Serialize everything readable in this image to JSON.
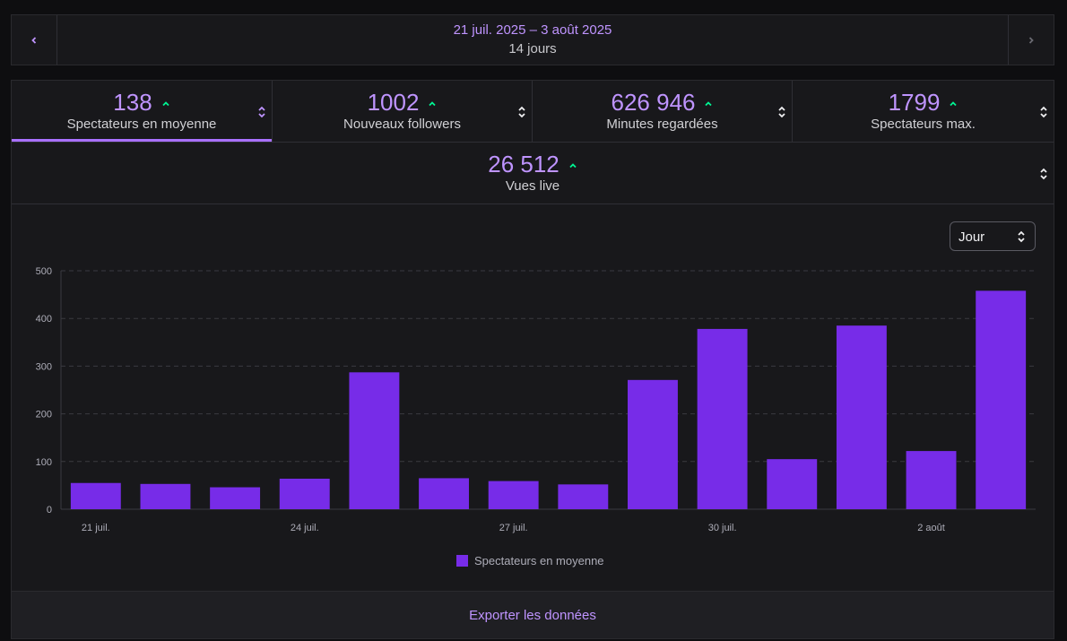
{
  "date_nav": {
    "range": "21 juil. 2025 – 3 août 2025",
    "days": "14 jours",
    "prev_icon": "chevron-left-icon",
    "next_icon": "chevron-right-icon"
  },
  "stats": [
    {
      "value": "138",
      "label": "Spectateurs en moyenne",
      "trend": "up",
      "active": true
    },
    {
      "value": "1002",
      "label": "Nouveaux followers",
      "trend": "up",
      "active": false
    },
    {
      "value": "626 946",
      "label": "Minutes regardées",
      "trend": "up",
      "active": false
    },
    {
      "value": "1799",
      "label": "Spectateurs max.",
      "trend": "up",
      "active": false
    },
    {
      "value": "26 512",
      "label": "Vues live",
      "trend": "up",
      "active": false
    }
  ],
  "granularity_select": {
    "value": "Jour"
  },
  "chart_data": {
    "type": "bar",
    "categories": [
      "21 juil.",
      "22 juil.",
      "23 juil.",
      "24 juil.",
      "25 juil.",
      "26 juil.",
      "27 juil.",
      "28 juil.",
      "29 juil.",
      "30 juil.",
      "31 juil.",
      "1 août",
      "2 août",
      "3 août"
    ],
    "x_tick_labels": [
      "21 juil.",
      "24 juil.",
      "27 juil.",
      "30 juil.",
      "2 août"
    ],
    "series": [
      {
        "name": "Spectateurs en moyenne",
        "values": [
          55,
          53,
          46,
          64,
          287,
          65,
          59,
          52,
          271,
          378,
          105,
          385,
          122,
          458
        ]
      }
    ],
    "ylim": [
      0,
      500
    ],
    "yticks": [
      0,
      100,
      200,
      300,
      400,
      500
    ],
    "grid": true,
    "legend": "bottom-center",
    "bar_color": "#772ce8"
  },
  "colors": {
    "accent": "#bf94ff",
    "bar": "#772ce8",
    "trend_up": "#00f593"
  },
  "footer": {
    "export_label": "Exporter les données"
  }
}
